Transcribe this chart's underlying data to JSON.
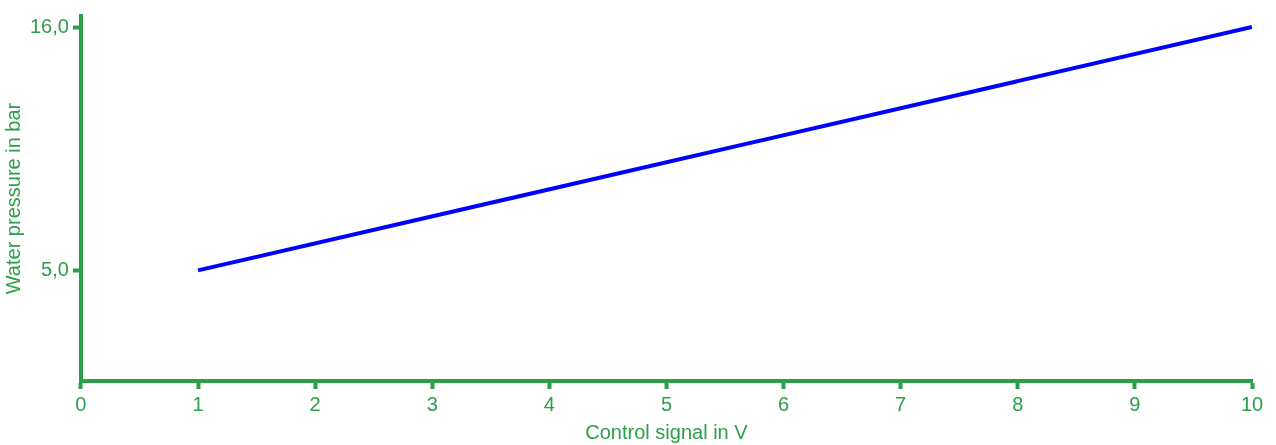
{
  "chart_data": {
    "type": "line",
    "xlabel": "Control signal in V",
    "ylabel": "Water pressure in bar",
    "x": [
      1,
      10
    ],
    "series": [
      {
        "color": "#0000ff",
        "values": [
          5,
          16
        ]
      }
    ],
    "xlim": [
      0,
      10
    ],
    "xticks": [
      0,
      1,
      2,
      3,
      4,
      5,
      6,
      7,
      8,
      9,
      10
    ],
    "ylim": [
      0,
      16.5
    ],
    "yticks": [
      {
        "value": 5,
        "label": "5,0"
      },
      {
        "value": 16,
        "label": "16,0"
      }
    ],
    "grid": false,
    "legend": false,
    "marker": "none",
    "line_style": "solid"
  }
}
